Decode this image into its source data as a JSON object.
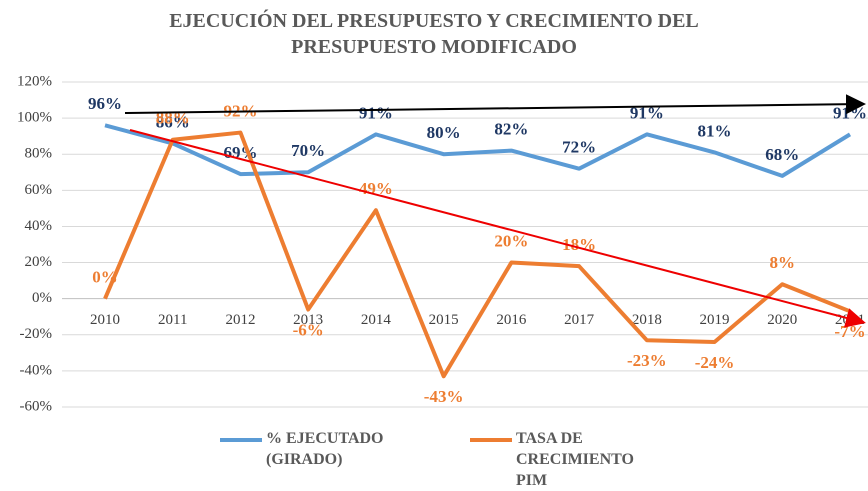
{
  "chart_data": {
    "type": "line",
    "title": "EJECUCIÓN DEL PRESUPUESTO Y CRECIMIENTO DEL PRESUPUESTO MODIFICADO",
    "categories": [
      "2010",
      "2011",
      "2012",
      "2013",
      "2014",
      "2015",
      "2016",
      "2017",
      "2018",
      "2019",
      "2020",
      "2021"
    ],
    "series": [
      {
        "name": "% EJECUTADO (GIRADO)",
        "color": "#5b9bd5",
        "values": [
          96,
          86,
          69,
          70,
          91,
          80,
          82,
          72,
          91,
          81,
          68,
          91
        ],
        "value_labels": [
          "96%",
          "86%",
          "69%",
          "70%",
          "91%",
          "80%",
          "82%",
          "72%",
          "91%",
          "81%",
          "68%",
          "91%"
        ]
      },
      {
        "name": "TASA DE CRECIMIENTO PIM",
        "color": "#ed7d31",
        "values": [
          0,
          88,
          92,
          -6,
          49,
          -43,
          20,
          18,
          -23,
          -24,
          8,
          -7
        ],
        "value_labels": [
          "0%",
          "88%",
          "92%",
          "-6%",
          "49%",
          "-43%",
          "20%",
          "18%",
          "-23%",
          "-24%",
          "8%",
          "-7%"
        ]
      }
    ],
    "ylim": [
      -60,
      120
    ],
    "yticks": [
      {
        "value": -60,
        "label": "-60%"
      },
      {
        "value": -40,
        "label": "-40%"
      },
      {
        "value": -20,
        "label": "-20%"
      },
      {
        "value": 0,
        "label": "0%"
      },
      {
        "value": 20,
        "label": "20%"
      },
      {
        "value": 40,
        "label": "40%"
      },
      {
        "value": 60,
        "label": "60%"
      },
      {
        "value": 80,
        "label": "80%"
      },
      {
        "value": 100,
        "label": "100%"
      },
      {
        "value": 120,
        "label": "120%"
      }
    ],
    "grid": true
  }
}
